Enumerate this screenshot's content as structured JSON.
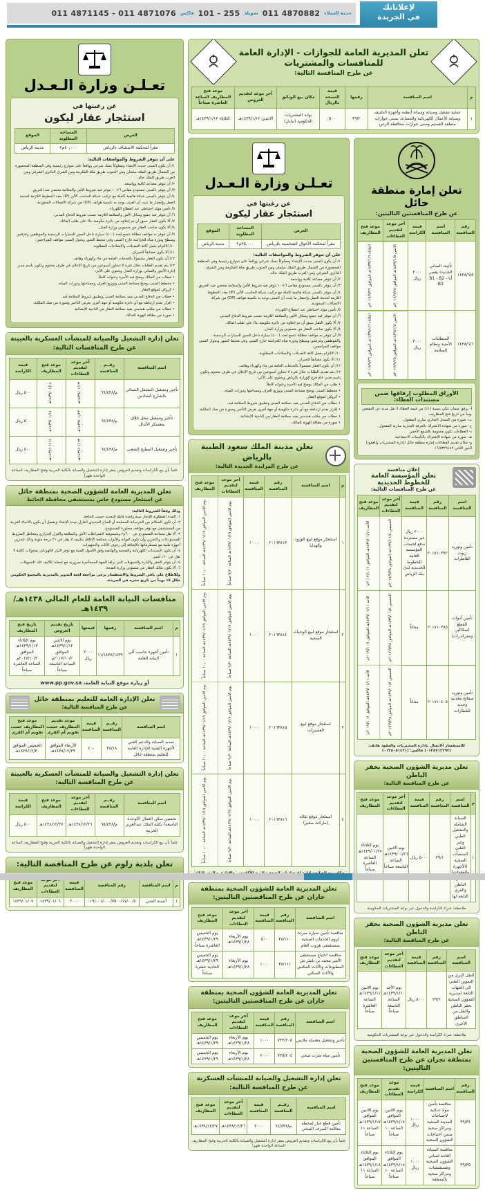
{
  "banner": {
    "brand_line1": "لإعلاناتك",
    "brand_line2": "في الجريدة",
    "svc_label": "خدمة العملاء",
    "svc_num": "011 4870882",
    "ext_label": "تحويلة",
    "ext_num": "101 - 255",
    "fax_label": "فاكس",
    "fax_num": "011 4871145 - 011 4871076"
  },
  "passports": {
    "title1": "تعلن المديرية العامة للجوازات - الإدارة العامة للمنافسات والمشتريات",
    "title2": "عن طرح المنافسة التالية:",
    "headers": [
      "م",
      "اسم المنافسة",
      "رقمها",
      "قيمة النسخة بالريال",
      "مكان بيع الوثائق",
      "آخر موعد لتقديم العروض",
      "موعد فتح المظاريف الساعة العاشرة صباحاً"
    ],
    "rows": [
      [
        "١",
        "عملية تشغيل وصيانة وسيانة أنظمة وأجهزة التكييف وصيانة الأعمال الكهربائية والمساعد بمبنى جوازات منطقة القصيم ومبنى جوازات محافظة الرس",
        "٣٩/٢",
        "٥٠٠",
        "بوابة المشتريات الحكومية (تبادل)",
        "الاثنيـن ١٤٣٩/١/١٢هـ",
        "الثلاثاء ١٤٣٩/١/١٣هـ"
      ]
    ]
  },
  "moj_left": {
    "title": "تعـلـن وزارة الـعـدل",
    "sub1": "عن رغبتها في",
    "sub2": "استئجار عقار ليكون",
    "headers": [
      "الغرض",
      "المساحة المطلوبة",
      "الموقع"
    ],
    "rows": [
      [
        "مقراً لمحكمة الاستئناف بالرياض",
        "٤٠,٠٠٠م٢",
        "مدينة الرياض"
      ]
    ],
    "intro": "على أن تتوفر الشروط والمواصفات التالية:",
    "conditions": [
      "١/ أن يكون المبنى حديث الإنشاء ومملوكاً بصك شرعي وواقعاً على شوارع رئيسية وفي المنطقة المحصورة من الشمال طريق الملك سلمان ومن الجنوب طريق مكة المكرمة ومن الشرق الدائري الشرقي ومن الغرب طريق الملك خالد.",
      "٢/ أن تتوفر مصاعد كافية وواسعة.",
      "٣/ أن يتوفر بالمبنى مستودع مقاس ٦×١٠ تتوفر فيه شروط الأمن والسلامة محصن ضد الحريق.",
      "٤/ أن يتوفر بالمبنى شبكة هاتفية كاملة مع تركيب شبكة الحاسب الآلي (IP) بعدد الخطوط اللازمة لخدمة العمل وإحضار ما يثبت أن المبنى يوجد به بكسية هواتف (DP) من شركة الاتصالات السعودية.",
      "٥/ تأمين مولد احتياطي عند انقطاع الكهرباء.",
      "٦/ أن تتوفر فيه جميع وسائل الأمن والسلامة اللازمة حسب شروط الدفاع المدني.",
      "٧/ ألا يكون العقار سبق أن تم إخلاؤه من دائرة حكومية بناءً على طلب المالك.",
      "٨/ ألا يكون صاحب العقار من منسوبي وزارة العدل.",
      "٩/ أن تتوفر به مواقف مظللة تتسع لعدد (٤٠٠) سيارة داخل السور للسيارات الرسمية والموظفين وغرفتين وسطح ودورة مياه للحراسة خارج المبنى وفي محيط السور وبجوار المبنى مواقف للمراجعين.",
      "١٠/ الالتزام بعمل كافة التعديلات والإصلاحات المطلوبة.",
      "١١/ ألا يكون مضايقاً للجيران.",
      "١٢/ أن يكون العقار مشمولاً بالخدمات العامة من ماء وكهرباء وهاتف.",
      "١٣/ يتم تقديم الطلبات خلال فترة لا تتجاوز أسبوعين من تاريخ الإعلان في ظرف مختوم وتكون باسم مدير إدارة الأجور والمباني بوزارة العدل ويحتوي على الآتي:",
      "• خطاب من المالك يوضح فيه الأجرة وعنوانه كاملاً.",
      "• مخطط المبنى يوضح مساحة المبنى وتوزيع الغرف ومساحتها ودورات المياه.",
      "• كروكي لموقع العقار.",
      "• خطاب من الدفاع المدني يفيد بسلامة المبنى وتطبيق شروط السلامة فيه.",
      "• إقرار بعدم ارتباطه مع أي دائرة حكومية أو جهة أخرى بغرض التأجير وصورة من صك الملكية.",
      "• خطاب من مكتب هندسي يفيد بسلامة العقار من الناحية الإنشائية.",
      "• صورة من بطاقة الهوية للمالك."
    ]
  },
  "moj_mid": {
    "title": "تعـلـن وزارة الـعـدل",
    "sub1": "عن رغبتها في",
    "sub2": "استئجار عقار ليكون",
    "headers": [
      "الغرض",
      "المساحة المطلوبة",
      "الموقع"
    ],
    "rows": [
      [
        "مقراً لمحكمة الأحوال الشخصية بالرياض",
        "٢٥,٠٠٠م٢",
        "مدينة الرياض"
      ]
    ],
    "intro": "على أن تتوفر الشروط والمواصفات التالية:",
    "conditions": [
      "١/ أن يكون المبنى حديث الإنشاء ومملوكاً بصك شرعي وواقعاً على شوارع رئيسية وفي المنطقة المحصورة من الشمال طريق الملك سلمان ومن الجنوب طريق مكة المكرمة ومن الشرق الدائري الشرقي ومن الغرب طريق الملك خالد.",
      "٢/ أن تتوفر مصاعد كافية وواسعة.",
      "٣/ أن يتوفر بالمبنى مستودع مقاس ٦×١٠ تتوفر فيه شروط الأمن والسلامة محصن ضد الحريق.",
      "٤/ أن يتوفر بالمبنى شبكة هاتفية كاملة مع تركيب شبكة الحاسب الآلي (IP) بعدد الخطوط اللازمة لخدمة العمل وإحضار ما يثبت أن المبنى يوجد به بكسية هواتف (DP) من شركة الاتصالات السعودية.",
      "٥/ تأمين مولد احتياطي عند انقطاع الكهرباء.",
      "٦/ أن تتوفر فيه جميع وسائل الأمن والسلامة اللازمة حسب شروط الدفاع المدني.",
      "٧/ ألا يكون العقار سبق أن تم إخلاؤه من دائرة حكومية بناءً على طلب المالك.",
      "٨/ ألا يكون صاحب العقار من منسوبي وزارة العدل.",
      "٩/ أن تتوفر به مواقف مظللة تتسع لعدد (٤٠٠) سيارة داخل السور للسيارات الرسمية والموظفين وغرفتين وسطح ودورة مياه للحراسة خارج المبنى وفي محيط السور وبجوار المبنى مواقف للمراجعين.",
      "١٠/ الالتزام بعمل كافة التعديلات والإصلاحات المطلوبة.",
      "١١/ ألا يكون مضايقاً للجيران.",
      "١٢/ أن يكون العقار مشمولاً بالخدمات العامة من ماء وكهرباء وهاتف.",
      "١٣/ يتم تقديم الطلبات خلال فترة لا تتجاوز أسبوعين من تاريخ الإعلان في ظرف مختوم وتكون باسم مدير عام فرع الوزارة بالرياض ويحتوي على الآتي:",
      "• طلب من المالك يوضح فيه الأجرة وعنوانه كاملاً.",
      "• مخطط المبنى يوضح مساحة المبنى وتوزيع الغرف ومساحتها ودورات المياه.",
      "• كروكي لموقع العقار.",
      "• خطاب من الدفاع المدني يفيد بسلامة المبنى وتطبيق شروط السلامة فيه.",
      "• إقرار بعدم ارتباطه مع أي دائرة حكومية أو جهة أخرى بغرض التأجير وصورة من صك الملكية.",
      "• خطاب من مكتب هندسي يفيد بسلامة العقار من الناحية الإنشائية.",
      "• صورة من بطاقة الهوية للمالك."
    ]
  },
  "military1": {
    "title": "تعلن إدارة التشغيل والصيانة للمنشآت العسكرية بالعيينة عن طرح المنافسات التالية:",
    "headers": [
      "اسم المنافسة",
      "رقــم المنافسة",
      "آخر موعد لتقديم العطاءات",
      "موعد فتح المظاريف",
      "قيمة الكراسة"
    ],
    "rows": [
      [
        "تأجير وتشغيل المشغل النسائي بالشارع السادس",
        "م/٦٦/٤٣٨",
        "١٤٣٩/٠١/١٣هـ",
        "١٤٣٩/٠١/١٤هـ",
        "٥٠٠ ريال"
      ],
      [
        "تأجير وتشغيل محل حلاق بمعسكر الأبدال",
        "م/٦٧/٤٣٨",
        "١٤٣٩/٠١/١٣هـ",
        "١٤٣٩/٠١/١٤هـ",
        "٥٠٠ ريال"
      ],
      [
        "تأجير وتشغيل المطبخ الشعبي",
        "م/٦٨/٤٣٨",
        "١٤٣٩/٠١/١٣هـ",
        "١٤٣٩/٠١/١٤هـ",
        "٥٠٠ ريال"
      ]
    ],
    "footnote": "علماً بأن بيع الكراسات وتقديم العروض بمقر إدارة التشغيل والصيانة بالكلية الحربية وفتح المظاريف الساعة الواحدة ظهراً"
  },
  "hail_health": {
    "title1": "تعلن المديرية العامة للشؤون الصحية بمنطقة حائل",
    "title2": "عن استئجار مستودع خاص بمستشفى محافظة الحائط",
    "intro": "وذلك وفقاً للشروط التالية:",
    "conditions": [
      "١- المدة المطلوبة للإيجار سنة واحدة قابلة للتجديد حسب الحاجة.",
      "٢- أن تكون السلالم من الخرسانة المسلحة أو الصاج الحديدي العازل جيدة الإنشاء ويفضل أن يكون بالأحياء القريبة من المستشفى مع توفر مواقف مجاورة للمستودع.",
      "٣- ألا تقل مساحة المستودع عن ٦٠٠م٢ ومستوفية لاشتراطات الأمن والسلامة والعزل الحراري ومخاطر الشروط للمستودعات والتخزين وأن تكون البوابة والأبواب محكمة الإغلاق بتكييف لا يقل عن ٢١ درجة مئوية وذلك لتخزين أجهزة طبية مع مستلزماتها بالإضافة إلى رفوف الأثاث والتجهيزات.",
      "٤- أن تكون التمديدات الكهربائية والصحية والهاتفية وفق الأصول الفنية مع توفر التيار الكهربائي بمحولات كافية لا تقل عن ١٢٠ أمبير.",
      "٥- أن يتوفر الحفر والإنارة والتسهيلات التي تراها الجهة المستأجرة ضرورية مع تحمله تكاليف تلك التسهيلات.",
      "٦- ألا يكون مالك العقار من منسوبي وزارة الصحة."
    ],
    "footnote": "وللاطلاع على باقي الشروط والاستفسار يرجى مراجعة لجنة التدوير بالمديرية بالمجمع الحكومي خلال ١٥ يوماً من تاريخ نشره في الجريدة."
  },
  "niyaba": {
    "title": "منافسات النيابة العامة للعام المالي ١٤٣٨هـ/١٤٣٩هـ",
    "headers": [
      "م",
      "اسم المنافسة",
      "رقمها",
      "قيمتها",
      "تاريخ تقديم العروض",
      "تاريخ فتح المظاريف"
    ],
    "rows": [
      [
        "١",
        "تأمين أجهزة حاسب آلي النيابة العامة",
        "١١/١٤٣٨/١٤٣٩",
        "٢٠٠٠ ريال",
        "يوم الاثنين ١٤٣٩/١/١٢هـ الموافق ٢٠١٧/١٠/٢م الساعة التاسعة صباحاً",
        "يوم الثلاثاء ١٤٣٩/١/١٣هـ الموافق ٢٠١٧/١٠/٣م الساعة العاشرة صباحاً"
      ]
    ],
    "footnote": "أو زيارة موقع النيابة العامة، www.pp.gov.sa"
  },
  "education": {
    "title1": "تعلن الإدارة العامة للتعليم بمنطقة حائل",
    "title2": "عن طرح المنافسة التالية:",
    "headers": [
      "اسم المنافسة",
      "رقــم المنافسة",
      "قيمة المنافسة",
      "موعد تقديم المظاريف حسب تقويم أم القرى",
      "موعد فتح المظاريف حسب تقويم أم القرى"
    ],
    "rows": [
      [
        "تمديد الصيانة والدعم الفني لأجهزة التقنية للإدارة العامة للتعليم بمنطقة حائل",
        "٣٨/١٨",
        "٤٠٠",
        "الأربعاء الموافق ١٤٣٨/١٢/٢٩هـ",
        "الخميس الموافق ١٤٣٨/١٢/٣٠هـ"
      ]
    ]
  },
  "military2": {
    "title": "تعلن إدارة التشغيل والصيانة للمنشآت العسكرية بالعيينة عن طرح المنافسة التالية:",
    "headers": [
      "اسم المنافسة",
      "رقــم المنافسة",
      "آخر موعد لتقديم العطاءات",
      "موعد فتح المظاريف",
      "قيمة الكراسة"
    ],
    "rows": [
      [
        "تحسين سكن العمال (الوحدة التاسعة) بكلية الملك عبدالعزيز الحربية",
        "م/٦٥/٤٣٨",
        "١٤٣٨/١٢/٢٦هـ",
        "١٤٣٨/١٢/٢٧هـ",
        "٥٠٠ ريال"
      ]
    ],
    "footnote": "علماً بأن بيع الكراسات وتقديم العروض بمقر إدارة التشغيل والصيانة بالكلية الحربية وفتح المظاريف الساعة الواحدة ظهراً"
  },
  "zulum": {
    "title": "تعلن بلدية زلوم عن طرح المناقصة التالية:",
    "headers": [
      "م",
      "اسم المناقصة",
      "رقم المناقصة",
      "قيمة المنافسة",
      "آخر موعد لتقديم العطاءات",
      "موعد فتح المظاريف"
    ],
    "rows": [
      [
        "١",
        "أنسنة المدن",
        "٠١٩/٠٠١/٠٠٠/٧٥٠٠/١٧/٠٠/٤",
        "٢٠٠٠",
        "١٤٣٩/٠١/٠٦",
        "١٤٣٩/٠١/٠٧"
      ]
    ]
  },
  "ksmc": {
    "title1": "تعلن مدينة الملك سعود الطبية بالرياض",
    "title2": "عن طرح المزايدة الجديدة التالية:",
    "headers": [
      "م",
      "اسم المنافسة",
      "رقم المنافسة",
      "قيمة المنافسة",
      "آخر موعد لتقديم العطاءات",
      "موعد فتح المظاريف"
    ],
    "rows": [
      [
        "١",
        "استئجار موقع لبيع الورود والهدايا",
        "٢٠١٦٣٨١٣",
        "١٠٠٠",
        "يوم الاثنين الموافق ١٤٣٩/٠١/١٩هـ الساعة ٩٫٣٠ صباحاً",
        "يوم الاثنين الموافق ١٤٣٩/٠١/١٩هـ الساعة ١٠٫٠٠ صباحاً"
      ],
      [
        "٢",
        "استئجار موقع لبيع الوجبات الصحية",
        "٢٠١٦٣٨١٤",
        "١٠٠٠",
        "يوم الاثنين الموافق ١٤٣٩/٠١/١٩هـ الساعة ٩٫٣٠ صباحاً",
        "يوم الاثنين الموافق ١٤٣٩/٠١/١٩هـ الساعة ١٠٫٠٠ صباحاً"
      ],
      [
        "٣",
        "استئجار موقع لبيع العصيرات",
        "٢٠١٦٣٨١٥",
        "١٠٠٠",
        "يوم الاثنين الموافق ١٤٣٩/٠١/١٩هـ الساعة ٩٫٣٠ صباحاً",
        "يوم الاثنين الموافق ١٤٣٩/٠١/١٩هـ الساعة ١٠٫٠٠ صباحاً"
      ],
      [
        "٤",
        "استئجار موقع بقالة (ماركت صغير)",
        "٢٠١٦٣٨١٦",
        "١٠٠٠",
        "يوم الاثنين الموافق ١٤٣٩/٠١/١٩هـ الساعة ٩٫٣٠ صباحاً",
        "يوم الاثنين الموافق ١٤٣٩/٠١/١٩هـ الساعة ١٠٫٠٠ صباحاً"
      ]
    ],
    "footnote": "مكان بيع الوثائق: إدارة اقتصاديات الصحة - البرج الأكاديمي والإداري - الدور الثالث"
  },
  "jazan1": {
    "title": "تعلن المديرية العامة للشؤون الصحية بمنطقة جازان عن طرح المناقصتين التاليتين:",
    "headers": [
      "اسم المناقصة",
      "رقم المناقصة",
      "قيمة المنافسة",
      "آخر موعد لتقديم العطاءات",
      "موعد فتح المظاريف"
    ],
    "rows": [
      [
        "مناقصة تأمين سيارة مبردة لزوم الخدمات الصحية بمستشفى هروب العام",
        "٣٨/١١٠",
        "٥٠٠",
        "يوم الأربعاء ١٤٣٩/١/٢٨هـ",
        "يوم الخميس ١٤٣٩/١/٢٩هـ العاشرة صباحاً"
      ],
      [
        "مناقصة احتياج مستشفى الأمير محمد بن ناصر من المطبوعات والأثاث المكتبي والأثاث السكني",
        "٣٨/١١١",
        "١٠٠٠",
        "يوم الأربعاء ١٤٣٩/١/٢٨هـ",
        "يوم الخميس ١٤٣٩/١/٢٩هـ الحادية عشرة صباحاً"
      ]
    ]
  },
  "jazan2": {
    "title": "تعلن المديرية العامة للشؤون الصحية بمنطقة جازان عن طرح المناقصتين التاليتين:",
    "headers": [
      "اسم المناقصة",
      "رقم المناقصة",
      "قيمة المنافسة",
      "آخر موعد لتقديم العطاءات",
      "موعد فتح المظاريف"
    ],
    "rows": [
      [
        "تأجير وتشغيل مغسلة ملابس",
        "٧٣٢/٢٠٥",
        "١٠٠٠",
        "يوم الأربعاء ١٤٣٩/١/٢٨هـ",
        "يوم الخميس ١٤٣٩/١/٢٩هـ"
      ],
      [
        "تأمين مياه شرب صحي",
        "٧٣٥/٢٠٤",
        "٢٠٠٠",
        "يوم الأربعاء ١٤٣٩/١/٢٨هـ",
        "يوم الخميس ١٤٣٩/١/٢٩هـ"
      ]
    ]
  },
  "military_mid": {
    "title": "تعلن إدارة التشغيل والصيانة للمنشآت العسكرية عن طرح المنافسة التالية:",
    "headers": [
      "اسم المنافسة",
      "رقــم المنافسة",
      "قيمة المنافسة",
      "آخر موعد لتقديم العطاءات",
      "موعد فتح المظاريف"
    ],
    "rows": [
      [
        "تأمين قطع غيار لمحطة معالجة الصرف الصحي",
        "م/٦٤/٤٣٨",
        "٢٠٠٠",
        "١٤٣٨/١٢/٢٦هـ",
        "١٤٣٨/١٢/٢٧هـ"
      ]
    ],
    "footnote": "علماً بأن بيع الكراسات وتقديم العروض بمقر إدارة التشغيل والصيانة بالكلية الحربية وفتح المظاريف الساعة الواحدة ظهراً"
  },
  "hail_emirate": {
    "title1": "تعلن إمارة منطقة حائل",
    "title2": "عن طرح المنافستين التاليتين:",
    "headers": [
      "رقم المنافسة",
      "اسم المنافسة",
      "قيمة الكراسة",
      "آخر موعد لتقديم العطاءات",
      "موعد فتح المظاريف"
    ],
    "rows": [
      [
        "١٤٣٨/٦/٥",
        "تأثيث المباني الجديدة بقصر أبا B1 - B2 - B3",
        "٣٠٠٠ ريال",
        "الاثنين ١٤٣٩/١/٥هـ الموافق ٢٠١٧/٩/٢٥م",
        "الثلاثاء ١٤٣٩/١/٦هـ الموافق ٢٠١٧/٩/٢٦م"
      ],
      [
        "١٤٣٨/٦/٦",
        "المتطلبات الأمنية ونظام السلامة",
        "٣٠٠٠ ريال",
        "الاثنين ١٤٣٩/١/٥هـ الموافق ٢٠١٧/٩/٢٥م",
        "الثلاثاء ١٤٣٩/١/٦هـ الموافق ٢٠١٧/٩/٢٦م"
      ]
    ],
    "papers_title": "الأوراق المطلوب إرفاقها ضمن مستندات العطاء:",
    "papers": [
      "أ- يرفق ضمان بنكي بنسبة (١٪) من قيمة العطاء لا تقل مدته عن التسعين يوماً من تاريخ فتح المظاريف.",
      "ب- صورة من السجل التجاري ساري المفعول.",
      "ج- صورة من شهادة الاشتراك بالغرفة التجارية سارية المفعول.",
      "د- العطاءات تكون مختومة بالشمع الأحمر.",
      "هـ- صورة من شهادة الاشتراك بالتأمينات الاجتماعية.",
      "و- مكان تقديم العطاءات إمارة منطقة حائل (إدارة المشتريات والعقود) الدور الثاني ٠١٦/٥٣٢٩١٨٢"
    ]
  },
  "railway": {
    "label": "إعلان منافسة",
    "title1": "تعلن المؤسسة العامة للخطوط الحديدية",
    "title2": "عن طرح المنافسات التالية:",
    "headers": [
      "اسم المنافسة",
      "رقم المنافسة",
      "قيمة المنافسة",
      "آخر موعد لتقديم العطاءات",
      "موعد فتح المظاريف"
    ],
    "rows": [
      [
        "تأمين وتوريد زيوت القاطرات",
        "٢٠١٧١٠٣٧٢",
        "٣٠٠٠ ريال غير مستردة تدفع لحساب المؤسسة العامة للخطوط الحديدية لدى بنك الرياض",
        "الخميس ١٤٣٩/٠١/٨هـ الموافق ٢٠١٧/٩/٢٨م",
        "الأحد ١٤٣٩/٠١/١١هـ الموافق ٢٠١٧/١٠/١م"
      ],
      [
        "تأمين أدوات القطع (سكاكين ومفركدرات)",
        "٢٠١٧١٠٣٨٥",
        "مجاناً",
        "الخميس ١٤٣٩/٠١/٨هـ الموافق ٢٠١٧/٩/٢٨م",
        "الأحد ١٤٣٩/٠١/١١هـ الموافق ٢٠١٧/١٠/١م"
      ],
      [
        "تأمين وتوريد صفائح معدنية وحديد للقطارات",
        "٢٠١٧١٠٤٠٥",
        "مجاناً",
        "الخميس ١٤٣٩/٠١/٨هـ الموافق ٢٠١٧/٩/٢٨م",
        "الأحد ١٤٣٩/٠١/١١هـ الموافق ٢٠١٧/١٠/١م"
      ]
    ],
    "footnote": "للاستفسار الاتصال بإدارة المشتريات والعقود هاتف: (٠١٣٨٧١٢٢٩٢) فاكس: (٠١٣٨٠٥١٤٢١)"
  },
  "hafr_a": {
    "title1": "تعلن مديرية الشؤون الصحية بحفر الباطن",
    "title2": "عن طرح المنافسة التالية:",
    "headers": [
      "م",
      "اسم المنافسة",
      "رقم المنافسة",
      "قيمة المنافسة",
      "آخر موعد لتقديم العطاءات",
      "موعد فتح المظاريف"
    ],
    "rows": [
      [
        "١",
        "الصيانة الشاملة والتشغيل الطبي وغير الطبي للمنشآت الصحية (الأجهزة والمعدات) بحفر الباطن والقرى التابعة لها",
        "٣٩/١",
        "٥٠٠٠ ريال",
        "يوم الاثنين ١٤٣٩/٠١/٢٦هـ الساعة التاسعة صباحاً",
        "يوم الثلاثاء ١٤٣٩/٠١/٢٧هـ الساعة العاشرة صباحاً"
      ]
    ],
    "footnote": "ملاحظة: شراء الكراسة والدخول عبر بوابة المشتريات الحكومية"
  },
  "hafr_b": {
    "title1": "تعلن مديرية الشؤون الصحية بحفر الباطن",
    "title2": "عن طرح المناقصة التالية:",
    "headers": [
      "اسم المناقصة",
      "رقم المناقصة",
      "قيمة المناقصة",
      "آخر موعد لتقديم العطاءات",
      "موعد فتح المظاريف"
    ],
    "rows": [
      [
        "النقل البري من التموين الطبي إلى الجهات التابعة لمديرية الشؤون الصحية بحفر الباطن والنقل من المناطق الأخرى",
        "٣٩/٢",
        "٥٠٠٠ ريال",
        "يوم الأحد ١٤٣٩/١/١٠هـ الساعة التاسعة صباحاً",
        "يوم الاثنين ١٤٣٩/١/١١هـ الساعة العاشرة صباحاً"
      ]
    ],
    "footnote": "ملاحظة: شراء الكراسة والدخول عبر بوابة المشتريات الحكومية"
  },
  "najran": {
    "title": "تعلن المديرية العامة للشؤون الصحية بمنطقة نجران عن طرح المنافستين التاليتين:",
    "headers": [
      "رقم المنافسة",
      "اسم المنافسة",
      "قيمة الكراسة",
      "موعد تقديم العطاءات",
      "موعد فتح المظاريف"
    ],
    "rows": [
      [
        "٣٩/٣٤",
        "منافسة تأمين مواد غذائية لاحتياجات المدينة الصحية ومراكز صحية ضمن احتياجات الشؤون الصحية",
        "١٠٠٠ ريال",
        "يوم الاثنين الموافق ١٤٣٩/١/١٧هـ الساعة ١٠ صباحاً",
        "يوم الاثنين الموافق ١٤٣٩/١/١٧هـ الساعة ١١ صباحاً"
      ],
      [
        "٣٩/٣٥",
        "منافسة الصيانة العامة لمباني الشؤون الصحية ومستشفيات ومراكز صحية بالمنطقة",
        "١٠٠٠ ريال",
        "يوم الثلاثاء الموافق ١٤٣٩/١/١٨هـ الساعة ١٠ صباحاً",
        "يوم الثلاثاء الموافق ١٤٣٩/١/١٨هـ الساعة ١١ صباحاً"
      ]
    ]
  },
  "colors": {
    "accent_green": "#8fae5e",
    "header_green": "#a9c178",
    "banner_blue": "#2f87ab"
  }
}
